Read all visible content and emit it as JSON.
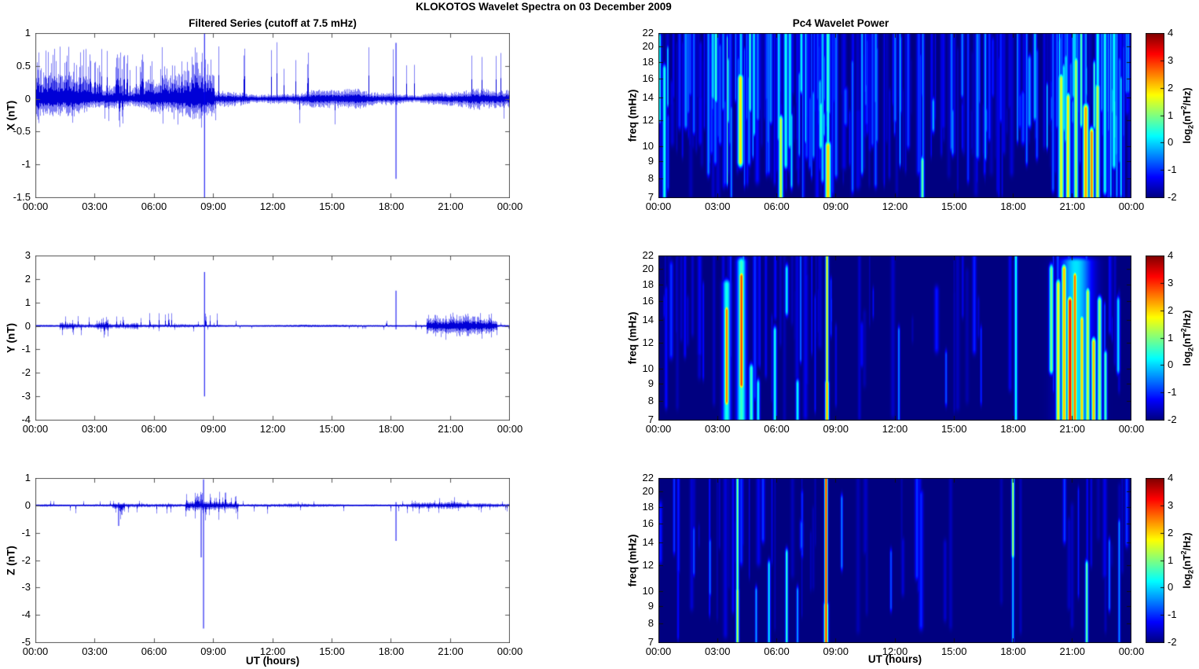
{
  "figure": {
    "title": "KLOKOTOS Wavelet Spectra on 03 December  2009",
    "left_column_title": "Filtered Series (cutoff at 7.5 mHz)",
    "right_column_title": "Pc4 Wavelet Power",
    "xlabel": "UT (hours)",
    "xtick_labels": [
      "00:00",
      "03:00",
      "06:00",
      "09:00",
      "12:00",
      "15:00",
      "18:00",
      "21:00",
      "00:00"
    ],
    "x_range_hours": [
      0,
      24
    ],
    "colors": {
      "trace_blue": "#0000ee",
      "heatmap_min_blue": "#000080",
      "heatmap_max_red": "#800000",
      "background": "#ffffff",
      "frame": "#555555"
    }
  },
  "colorbar": {
    "range": [
      -2,
      4
    ],
    "tick_values": [
      4,
      3,
      2,
      1,
      0,
      -1,
      -2
    ],
    "tick_labels": [
      "4",
      "3",
      "2",
      "1",
      "0",
      "-1",
      "-2"
    ],
    "label_parts": {
      "pre": "log",
      "sub": "2",
      "mid": "(nT",
      "sup": "2",
      "post": "/Hz)"
    }
  },
  "chart_data": [
    {
      "id": "x-filtered-series",
      "type": "line",
      "ylabel": "X (nT)",
      "ylim": [
        -1.5,
        1
      ],
      "ytick_values": [
        1,
        0.5,
        0,
        -0.5,
        -1,
        -1.5
      ],
      "ytick_labels": [
        "1",
        "0.5",
        "0",
        "-0.5",
        "-1",
        "-1.5"
      ],
      "seed": 101,
      "noise_segments": [
        {
          "t0": 0.0,
          "t1": 9.05,
          "pos": 0.42,
          "neg": -0.27,
          "p_up": 0.3,
          "spike_up": 0.8,
          "p_dn": 0.07,
          "spike_dn": -0.45
        },
        {
          "t0": 9.05,
          "t1": 24.0,
          "pos": 0.14,
          "neg": -0.15,
          "p_up": 0.055,
          "spike_up": 0.88,
          "p_dn": 0.02,
          "spike_dn": -0.42
        }
      ],
      "spikes": [
        {
          "t": 8.55,
          "up": 1.0,
          "down": -1.5
        },
        {
          "t": 18.25,
          "up": 0.85,
          "down": -1.22
        }
      ]
    },
    {
      "id": "y-filtered-series",
      "type": "line",
      "ylabel": "Y (nT)",
      "ylim": [
        -4,
        3
      ],
      "ytick_values": [
        3,
        2,
        1,
        0,
        -1,
        -2,
        -3,
        -4
      ],
      "ytick_labels": [
        "3",
        "2",
        "1",
        "0",
        "-1",
        "-2",
        "-3",
        "-4"
      ],
      "seed": 202,
      "noise_segments": [
        {
          "t0": 0.0,
          "t1": 24.0,
          "pos": 0.05,
          "neg": -0.05,
          "p_up": 0.03,
          "spike_up": 0.22,
          "p_dn": 0.02,
          "spike_dn": -0.18
        },
        {
          "t0": 1.2,
          "t1": 5.2,
          "pos": 0.18,
          "neg": -0.2,
          "p_up": 0.12,
          "spike_up": 0.45,
          "p_dn": 0.09,
          "spike_dn": -0.45
        },
        {
          "t0": 3.1,
          "t1": 3.7,
          "pos": 0.28,
          "neg": -0.3,
          "p_up": 0.2,
          "spike_up": 0.4,
          "p_dn": 0.15,
          "spike_dn": -0.5
        },
        {
          "t0": 5.2,
          "t1": 9.4,
          "pos": 0.07,
          "neg": -0.07,
          "p_up": 0.1,
          "spike_up": 0.55,
          "p_dn": 0.03,
          "spike_dn": -0.25
        },
        {
          "t0": 19.8,
          "t1": 23.4,
          "pos": 0.38,
          "neg": -0.4,
          "p_up": 0.16,
          "spike_up": 0.6,
          "p_dn": 0.12,
          "spike_dn": -0.6
        }
      ],
      "spikes": [
        {
          "t": 8.55,
          "up": 2.3,
          "down": -3.0
        },
        {
          "t": 18.25,
          "up": 1.5,
          "down": -0.15
        }
      ]
    },
    {
      "id": "z-filtered-series",
      "type": "line",
      "ylabel": "Z (nT)",
      "ylim": [
        -5,
        1
      ],
      "ytick_values": [
        1,
        0,
        -1,
        -2,
        -3,
        -4,
        -5
      ],
      "ytick_labels": [
        "1",
        "0",
        "-1",
        "-2",
        "-3",
        "-4",
        "-5"
      ],
      "seed": 303,
      "noise_segments": [
        {
          "t0": 0.0,
          "t1": 24.0,
          "pos": 0.06,
          "neg": -0.07,
          "p_up": 0.03,
          "spike_up": 0.18,
          "p_dn": 0.04,
          "spike_dn": -0.32
        },
        {
          "t0": 3.9,
          "t1": 4.5,
          "pos": 0.1,
          "neg": -0.25,
          "p_up": 0.1,
          "spike_up": 0.2,
          "p_dn": 0.2,
          "spike_dn": -0.55
        },
        {
          "t0": 7.6,
          "t1": 10.3,
          "pos": 0.28,
          "neg": -0.32,
          "p_up": 0.2,
          "spike_up": 0.5,
          "p_dn": 0.14,
          "spike_dn": -0.55
        },
        {
          "t0": 19.0,
          "t1": 24.0,
          "pos": 0.11,
          "neg": -0.12,
          "p_up": 0.06,
          "spike_up": 0.3,
          "p_dn": 0.05,
          "spike_dn": -0.3
        }
      ],
      "spikes": [
        {
          "t": 4.2,
          "up": 0.1,
          "down": -0.75
        },
        {
          "t": 8.38,
          "up": 0.4,
          "down": -1.9
        },
        {
          "t": 8.5,
          "up": 0.95,
          "down": -4.5
        },
        {
          "t": 18.25,
          "up": 0.12,
          "down": -1.3
        }
      ]
    },
    {
      "id": "x-wavelet-power",
      "type": "heatmap",
      "ylabel": "freq (mHz)",
      "f_range": [
        7,
        22
      ],
      "yscale": "log",
      "ytick_values": [
        22,
        20,
        18,
        16,
        14,
        12,
        10,
        9,
        8,
        7
      ],
      "ytick_labels": [
        "22",
        "20",
        "18",
        "16",
        "14",
        "12",
        "10",
        "9",
        "8",
        "7"
      ],
      "value_range": [
        -2,
        4
      ],
      "seed": 404,
      "random_streaks": [
        {
          "t0": 0.0,
          "t1": 9.5,
          "count": 180,
          "vmax": 0.7
        },
        {
          "t0": 9.5,
          "t1": 14.0,
          "count": 60,
          "vmax": 0.1
        },
        {
          "t0": 14.0,
          "t1": 19.0,
          "count": 55,
          "vmax": -0.1
        },
        {
          "t0": 19.0,
          "t1": 24.0,
          "count": 110,
          "vmax": 0.9
        }
      ],
      "streaks": [
        {
          "t": 2.9,
          "f0": 14,
          "f1": 22,
          "v": 0.6,
          "w": 1.5
        },
        {
          "t": 4.15,
          "f0": 9,
          "f1": 16,
          "v": 1.9,
          "w": 2.5
        },
        {
          "t": 6.2,
          "f0": 7,
          "f1": 12,
          "v": 1.5,
          "w": 2
        },
        {
          "t": 8.6,
          "f0": 7,
          "f1": 10,
          "v": 2.1,
          "w": 2.5
        },
        {
          "t": 8.6,
          "f0": 7,
          "f1": 22,
          "v": 0.5,
          "w": 1.5
        },
        {
          "t": 13.4,
          "f0": 7,
          "f1": 9,
          "v": 0.9,
          "w": 1.5
        },
        {
          "t": 20.45,
          "f0": 7,
          "f1": 16,
          "v": 1.6,
          "w": 2.5
        },
        {
          "t": 20.8,
          "f0": 7,
          "f1": 14,
          "v": 1.9,
          "w": 2
        },
        {
          "t": 21.2,
          "f0": 7,
          "f1": 18,
          "v": 1.3,
          "w": 2
        },
        {
          "t": 21.7,
          "f0": 7,
          "f1": 13,
          "v": 2.4,
          "w": 2.5
        },
        {
          "t": 22.0,
          "f0": 7,
          "f1": 11,
          "v": 2.6,
          "w": 2
        },
        {
          "t": 22.3,
          "f0": 7,
          "f1": 15,
          "v": 1.5,
          "w": 2
        }
      ]
    },
    {
      "id": "y-wavelet-power",
      "type": "heatmap",
      "ylabel": "freq (mHz)",
      "f_range": [
        7,
        22
      ],
      "yscale": "log",
      "ytick_values": [
        22,
        20,
        18,
        16,
        14,
        12,
        10,
        9,
        8,
        7
      ],
      "ytick_labels": [
        "22",
        "20",
        "18",
        "16",
        "14",
        "12",
        "10",
        "9",
        "8",
        "7"
      ],
      "value_range": [
        -2,
        4
      ],
      "seed": 505,
      "random_streaks": [
        {
          "t0": 0.0,
          "t1": 9.0,
          "count": 45,
          "vmax": -0.2
        },
        {
          "t0": 9.0,
          "t1": 18.0,
          "count": 18,
          "vmax": -0.8
        },
        {
          "t0": 18.0,
          "t1": 24.0,
          "count": 15,
          "vmax": -0.6
        }
      ],
      "streaks": [
        {
          "t": 3.45,
          "f0": 8,
          "f1": 15,
          "v": 2.6,
          "w": 2
        },
        {
          "t": 3.45,
          "f0": 7,
          "f1": 18,
          "v": 0.4,
          "w": 3.5
        },
        {
          "t": 4.2,
          "f0": 9,
          "f1": 19,
          "v": 2.9,
          "w": 2.2
        },
        {
          "t": 4.2,
          "f0": 7,
          "f1": 21,
          "v": 0.6,
          "w": 4
        },
        {
          "t": 4.7,
          "f0": 7,
          "f1": 10,
          "v": 0.6,
          "w": 2
        },
        {
          "t": 5.05,
          "f0": 7,
          "f1": 9,
          "v": 0.3,
          "w": 1.5
        },
        {
          "t": 5.9,
          "f0": 7,
          "f1": 13,
          "v": 0.4,
          "w": 1.5
        },
        {
          "t": 6.5,
          "f0": 15,
          "f1": 20,
          "v": 0.2,
          "w": 1.5
        },
        {
          "t": 7.05,
          "f0": 7,
          "f1": 9,
          "v": 0.3,
          "w": 1.5
        },
        {
          "t": 8.55,
          "f0": 7,
          "f1": 22,
          "v": 2.0,
          "w": 1.3
        },
        {
          "t": 8.55,
          "f0": 7,
          "f1": 9,
          "v": 2.4,
          "w": 1.6
        },
        {
          "t": 12.2,
          "f0": 7,
          "f1": 13,
          "v": -0.4,
          "w": 1
        },
        {
          "t": 14.6,
          "f0": 8,
          "f1": 11,
          "v": -0.7,
          "w": 1
        },
        {
          "t": 18.15,
          "f0": 7,
          "f1": 22,
          "v": 0.4,
          "w": 1.3
        },
        {
          "t": 19.95,
          "f0": 10,
          "f1": 20,
          "v": 1.0,
          "w": 2
        },
        {
          "t": 20.3,
          "f0": 7,
          "f1": 18,
          "v": 1.8,
          "w": 2
        },
        {
          "t": 20.6,
          "f0": 7,
          "f1": 20,
          "v": 2.2,
          "w": 2.3
        },
        {
          "t": 20.9,
          "f0": 7,
          "f1": 16,
          "v": 3.3,
          "w": 2.4
        },
        {
          "t": 21.15,
          "f0": 7,
          "f1": 19,
          "v": 2.7,
          "w": 2
        },
        {
          "t": 21.2,
          "f0": 7,
          "f1": 21,
          "v": 0.1,
          "w": 14
        },
        {
          "t": 21.5,
          "f0": 7,
          "f1": 14,
          "v": 2.1,
          "w": 2
        },
        {
          "t": 21.8,
          "f0": 7,
          "f1": 17,
          "v": 1.5,
          "w": 2
        },
        {
          "t": 22.1,
          "f0": 7,
          "f1": 12,
          "v": 2.2,
          "w": 2
        },
        {
          "t": 22.4,
          "f0": 7,
          "f1": 16,
          "v": 1.2,
          "w": 2
        },
        {
          "t": 22.7,
          "f0": 7,
          "f1": 11,
          "v": 0.7,
          "w": 1.5
        },
        {
          "t": 23.35,
          "f0": 10,
          "f1": 16,
          "v": 0.1,
          "w": 1.5
        }
      ]
    },
    {
      "id": "z-wavelet-power",
      "type": "heatmap",
      "ylabel": "freq (mHz)",
      "f_range": [
        7,
        22
      ],
      "yscale": "log",
      "ytick_values": [
        22,
        20,
        18,
        16,
        14,
        12,
        10,
        9,
        8,
        7
      ],
      "ytick_labels": [
        "22",
        "20",
        "18",
        "16",
        "14",
        "12",
        "10",
        "9",
        "8",
        "7"
      ],
      "value_range": [
        -2,
        4
      ],
      "seed": 606,
      "random_streaks": [
        {
          "t0": 0.0,
          "t1": 8.0,
          "count": 30,
          "vmax": -0.5
        },
        {
          "t0": 8.0,
          "t1": 18.0,
          "count": 12,
          "vmax": -0.9
        },
        {
          "t0": 18.0,
          "t1": 24.0,
          "count": 14,
          "vmax": -0.7
        }
      ],
      "streaks": [
        {
          "t": 2.6,
          "f0": 10,
          "f1": 14,
          "v": -0.5,
          "w": 1
        },
        {
          "t": 4.0,
          "f0": 7,
          "f1": 22,
          "v": 1.1,
          "w": 1.2
        },
        {
          "t": 4.0,
          "f0": 7,
          "f1": 10,
          "v": 1.5,
          "w": 1.3
        },
        {
          "t": 4.95,
          "f0": 7,
          "f1": 10,
          "v": -0.2,
          "w": 1
        },
        {
          "t": 5.6,
          "f0": 7,
          "f1": 12,
          "v": 0.2,
          "w": 1.2
        },
        {
          "t": 6.5,
          "f0": 7,
          "f1": 13,
          "v": 0.6,
          "w": 1.2
        },
        {
          "t": 7.05,
          "f0": 7,
          "f1": 10,
          "v": -0.2,
          "w": 1
        },
        {
          "t": 8.5,
          "f0": 7,
          "f1": 22,
          "v": 3.3,
          "w": 1.3
        },
        {
          "t": 8.5,
          "f0": 7,
          "f1": 9,
          "v": 2.7,
          "w": 1.8
        },
        {
          "t": 9.3,
          "f0": 12,
          "f1": 19,
          "v": -0.4,
          "w": 1
        },
        {
          "t": 11.8,
          "f0": 9,
          "f1": 13,
          "v": -0.7,
          "w": 1
        },
        {
          "t": 18.0,
          "f0": 13,
          "f1": 22,
          "v": 1.4,
          "w": 1.2
        },
        {
          "t": 18.0,
          "f0": 7,
          "f1": 13,
          "v": 0.0,
          "w": 1
        },
        {
          "t": 21.75,
          "f0": 7,
          "f1": 12,
          "v": 0.9,
          "w": 1.3
        },
        {
          "t": 22.9,
          "f0": 9,
          "f1": 14,
          "v": -0.5,
          "w": 1
        },
        {
          "t": 23.4,
          "f0": 7,
          "f1": 16,
          "v": -0.3,
          "w": 1
        }
      ]
    }
  ]
}
